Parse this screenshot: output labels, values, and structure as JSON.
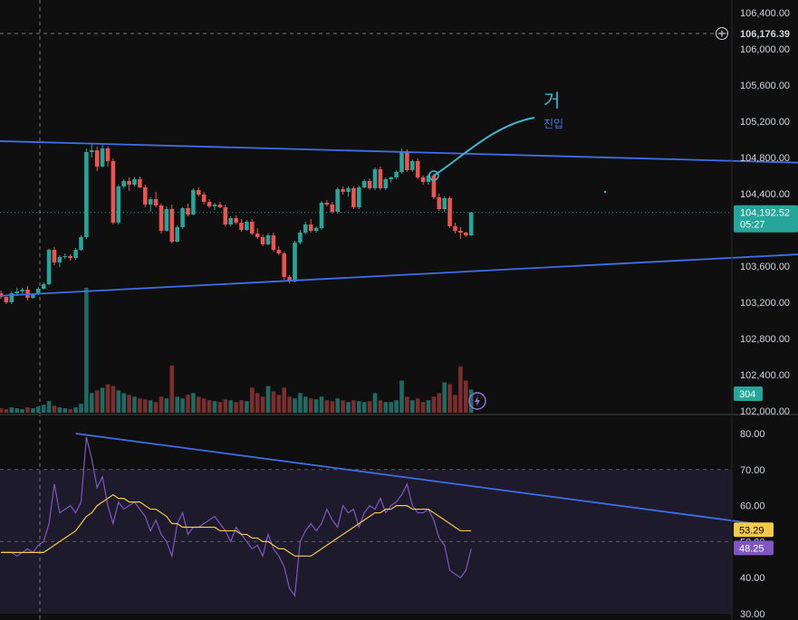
{
  "chart_data": {
    "type": "candlestick",
    "price_axis": {
      "ticks": [
        "106,400.00",
        "106,000.00",
        "105,600.00",
        "105,200.00",
        "104,800.00",
        "104,400.00",
        "103,600.00",
        "103,200.00",
        "102,800.00",
        "102,400.00",
        "102,000.00"
      ],
      "tick_values": [
        106400,
        106000,
        105600,
        105200,
        104800,
        104400,
        103600,
        103200,
        102800,
        102400,
        102000
      ],
      "range": [
        102000,
        106450
      ]
    },
    "crosshair_price": "106,176.39",
    "current_price": {
      "label": "104,192.52",
      "countdown": "05:27",
      "value": 104192.52,
      "color": "#26a69a"
    },
    "volume_badge": {
      "label": "304",
      "color": "#26a69a"
    },
    "candles": [
      [
        103300,
        103330,
        103240,
        103260
      ],
      [
        103260,
        103280,
        103180,
        103200
      ],
      [
        103200,
        103320,
        103180,
        103300
      ],
      [
        103300,
        103360,
        103270,
        103320
      ],
      [
        103320,
        103360,
        103290,
        103340
      ],
      [
        103340,
        103380,
        103220,
        103250
      ],
      [
        103250,
        103300,
        103240,
        103290
      ],
      [
        103290,
        103370,
        103280,
        103350
      ],
      [
        103350,
        103420,
        103340,
        103400
      ],
      [
        103400,
        103790,
        103390,
        103780
      ],
      [
        103780,
        103810,
        103610,
        103640
      ],
      [
        103640,
        103720,
        103590,
        103700
      ],
      [
        103700,
        103740,
        103680,
        103710
      ],
      [
        103710,
        103730,
        103660,
        103690
      ],
      [
        103690,
        103800,
        103670,
        103780
      ],
      [
        103780,
        103940,
        103770,
        103920
      ],
      [
        103920,
        104900,
        103900,
        104860
      ],
      [
        104860,
        104950,
        104800,
        104880
      ],
      [
        104880,
        104920,
        104650,
        104700
      ],
      [
        104700,
        104960,
        104690,
        104900
      ],
      [
        104900,
        104920,
        104700,
        104760
      ],
      [
        104760,
        104790,
        104060,
        104080
      ],
      [
        104080,
        104500,
        104060,
        104480
      ],
      [
        104480,
        104560,
        104460,
        104540
      ],
      [
        104540,
        104580,
        104430,
        104500
      ],
      [
        104500,
        104580,
        104480,
        104560
      ],
      [
        104560,
        104590,
        104460,
        104470
      ],
      [
        104470,
        104500,
        104250,
        104280
      ],
      [
        104280,
        104360,
        104200,
        104340
      ],
      [
        104340,
        104420,
        104250,
        104270
      ],
      [
        104270,
        104290,
        103960,
        103990
      ],
      [
        103990,
        104260,
        103980,
        104230
      ],
      [
        104230,
        104280,
        103850,
        103870
      ],
      [
        103870,
        104050,
        103860,
        104030
      ],
      [
        104030,
        104250,
        104010,
        104240
      ],
      [
        104240,
        104290,
        104150,
        104170
      ],
      [
        104170,
        104460,
        104160,
        104440
      ],
      [
        104440,
        104470,
        104370,
        104390
      ],
      [
        104390,
        104420,
        104280,
        104310
      ],
      [
        104310,
        104340,
        104240,
        104260
      ],
      [
        104260,
        104300,
        104220,
        104280
      ],
      [
        104280,
        104310,
        104240,
        104250
      ],
      [
        104250,
        104280,
        104040,
        104060
      ],
      [
        104060,
        104150,
        104040,
        104130
      ],
      [
        104130,
        104160,
        104060,
        104080
      ],
      [
        104080,
        104120,
        103980,
        104000
      ],
      [
        104000,
        104110,
        103990,
        104090
      ],
      [
        104090,
        104120,
        103940,
        103960
      ],
      [
        103960,
        104020,
        103900,
        103920
      ],
      [
        103920,
        103950,
        103820,
        103840
      ],
      [
        103840,
        103960,
        103830,
        103940
      ],
      [
        103940,
        103970,
        103760,
        103780
      ],
      [
        103780,
        103820,
        103720,
        103740
      ],
      [
        103740,
        103760,
        103450,
        103480
      ],
      [
        103480,
        103500,
        103410,
        103430
      ],
      [
        103430,
        103880,
        103420,
        103860
      ],
      [
        103860,
        104000,
        103840,
        103970
      ],
      [
        103970,
        104090,
        103950,
        104060
      ],
      [
        104060,
        104120,
        103970,
        103990
      ],
      [
        103990,
        104040,
        103970,
        104020
      ],
      [
        104020,
        104320,
        104000,
        104300
      ],
      [
        104300,
        104330,
        104260,
        104280
      ],
      [
        104280,
        104310,
        104180,
        104200
      ],
      [
        104200,
        104470,
        104180,
        104450
      ],
      [
        104450,
        104480,
        104390,
        104420
      ],
      [
        104420,
        104480,
        104370,
        104460
      ],
      [
        104460,
        104480,
        104230,
        104250
      ],
      [
        104250,
        104490,
        104230,
        104470
      ],
      [
        104470,
        104560,
        104460,
        104540
      ],
      [
        104540,
        104570,
        104440,
        104460
      ],
      [
        104460,
        104690,
        104440,
        104670
      ],
      [
        104670,
        104700,
        104440,
        104460
      ],
      [
        104460,
        104580,
        104440,
        104560
      ],
      [
        104560,
        104590,
        104520,
        104580
      ],
      [
        104580,
        104660,
        104560,
        104640
      ],
      [
        104640,
        104900,
        104620,
        104870
      ],
      [
        104870,
        104890,
        104640,
        104660
      ],
      [
        104660,
        104780,
        104640,
        104760
      ],
      [
        104760,
        104790,
        104560,
        104580
      ],
      [
        104580,
        104600,
        104500,
        104530
      ],
      [
        104530,
        104620,
        104500,
        104600
      ],
      [
        104600,
        104620,
        104340,
        104360
      ],
      [
        104360,
        104400,
        104210,
        104230
      ],
      [
        104230,
        104370,
        104200,
        104350
      ],
      [
        104350,
        104370,
        104020,
        104040
      ],
      [
        104040,
        104080,
        103960,
        103990
      ],
      [
        103990,
        104030,
        103900,
        103970
      ],
      [
        103970,
        103980,
        103920,
        103940
      ],
      [
        103940,
        104200,
        103930,
        104193
      ]
    ],
    "volumes": [
      5,
      4,
      6,
      5,
      4,
      6,
      5,
      7,
      9,
      13,
      8,
      6,
      5,
      4,
      6,
      10,
      140,
      22,
      25,
      28,
      32,
      30,
      25,
      22,
      20,
      18,
      16,
      15,
      14,
      12,
      18,
      16,
      53,
      18,
      16,
      20,
      22,
      18,
      16,
      14,
      13,
      12,
      15,
      14,
      12,
      14,
      13,
      28,
      22,
      18,
      30,
      24,
      20,
      28,
      18,
      16,
      22,
      18,
      16,
      15,
      18,
      14,
      13,
      16,
      14,
      12,
      14,
      13,
      12,
      13,
      22,
      14,
      12,
      12,
      14,
      36,
      18,
      14,
      16,
      12,
      14,
      18,
      22,
      34,
      32,
      20,
      52,
      36,
      26
    ],
    "rsi_axis": {
      "ticks": [
        "80.00",
        "70.00",
        "60.00",
        "50.00",
        "40.00",
        "30.00"
      ],
      "tick_values": [
        80,
        70,
        60,
        50,
        40,
        30
      ],
      "range": [
        30,
        80
      ]
    },
    "rsi": [
      47,
      47,
      47,
      46,
      47,
      48,
      47,
      49,
      50,
      55,
      66,
      58,
      59,
      60,
      58,
      61,
      79,
      73,
      65,
      68,
      60,
      55,
      61,
      59,
      60,
      61,
      59,
      57,
      53,
      56,
      52,
      50,
      46,
      55,
      58,
      52,
      54,
      54,
      55,
      56,
      57,
      55,
      53,
      50,
      54,
      52,
      50,
      48,
      49,
      46,
      52,
      48,
      46,
      43,
      37,
      35,
      50,
      53,
      55,
      53,
      55,
      59,
      56,
      54,
      60,
      58,
      59,
      54,
      58,
      60,
      59,
      62,
      58,
      60,
      61,
      63,
      66,
      60,
      58,
      58,
      59,
      56,
      51,
      49,
      42,
      41,
      40,
      42,
      48
    ],
    "rsi_ma": [
      47,
      47,
      47,
      47,
      47,
      47,
      47,
      47,
      47,
      48,
      49,
      50,
      51,
      52,
      53,
      55,
      57,
      58,
      60,
      61,
      62,
      63,
      62,
      62,
      61,
      61,
      61,
      60,
      59,
      59,
      58,
      57,
      55,
      55,
      54,
      54,
      54,
      54,
      54,
      54,
      54,
      53,
      53,
      53,
      53,
      52,
      52,
      51,
      51,
      50,
      50,
      49,
      48,
      48,
      47,
      46,
      46,
      46,
      46,
      47,
      48,
      49,
      50,
      51,
      52,
      53,
      54,
      55,
      56,
      57,
      58,
      58,
      59,
      59,
      60,
      60,
      60,
      59,
      59,
      59,
      59,
      58,
      57,
      56,
      55,
      54,
      53,
      53,
      53
    ],
    "rsi_badges": [
      {
        "label": "53.29",
        "value": 53.29,
        "color": "#f7c948"
      },
      {
        "label": "48.25",
        "value": 48.25,
        "color": "#7e57c2"
      }
    ],
    "rsi_band": [
      30,
      70
    ],
    "trendlines": [
      {
        "pane": "price",
        "from": [
          -1,
          104982
        ],
        "to": [
          182,
          104691
        ],
        "color": "#3f6fe8"
      },
      {
        "pane": "price",
        "from": [
          -1,
          103270
        ],
        "to": [
          182,
          103830
        ],
        "color": "#3f6fe8"
      },
      {
        "pane": "rsi",
        "from": [
          14,
          80
        ],
        "to": [
          141,
          55
        ],
        "color": "#3f6fe8"
      }
    ],
    "annotation": {
      "symbol": "거",
      "text": "진입",
      "color": "#3fb6d0"
    },
    "grid": false,
    "theme": "dark"
  }
}
